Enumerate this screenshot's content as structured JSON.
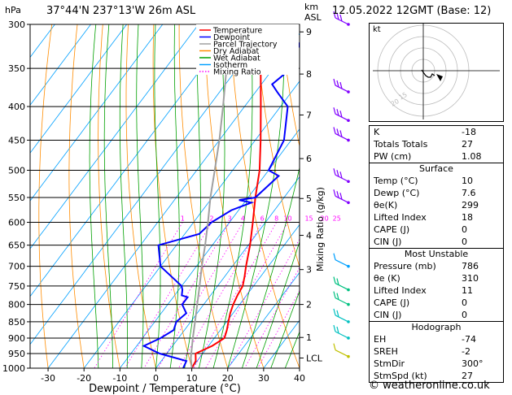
{
  "header": {
    "pressure_unit": "hPa",
    "location": "37°44'N  237°13'W  26m  ASL",
    "km_label": "km",
    "asl_label": "ASL",
    "datetime": "12.05.2022  12GMT  (Base: 12)"
  },
  "chart_data": {
    "type": "line",
    "title": "",
    "xlabel": "Dewpoint / Temperature (°C)",
    "ylabel": "Mixing Ratio (g/kg)",
    "xlim": [
      -35,
      40
    ],
    "ylim": [
      1000,
      300
    ],
    "x_ticks": [
      -30,
      -20,
      -10,
      0,
      10,
      20,
      30,
      40
    ],
    "pressure_levels": [
      300,
      350,
      400,
      450,
      500,
      550,
      600,
      650,
      700,
      750,
      800,
      850,
      900,
      950,
      1000
    ],
    "height_km": [
      {
        "label": "9",
        "p": 308
      },
      {
        "label": "8",
        "p": 357
      },
      {
        "label": "7",
        "p": 412
      },
      {
        "label": "6",
        "p": 480
      },
      {
        "label": "5",
        "p": 552
      },
      {
        "label": "4",
        "p": 628
      },
      {
        "label": "3",
        "p": 708
      },
      {
        "label": "2",
        "p": 800
      },
      {
        "label": "1",
        "p": 898
      },
      {
        "label": "LCL",
        "p": 965
      }
    ],
    "mixing_ratio_labels": [
      "1",
      "2",
      "3",
      "4",
      "6",
      "8",
      "10",
      "15",
      "20",
      "25"
    ],
    "mixing_ratio_values": [
      1,
      2,
      3,
      4,
      6,
      8,
      10,
      15,
      20,
      25
    ],
    "legend": [
      {
        "label": "Temperature",
        "color": "#ff0000"
      },
      {
        "label": "Dewpoint",
        "color": "#0000ff"
      },
      {
        "label": "Parcel Trajectory",
        "color": "#a0a0a0"
      },
      {
        "label": "Dry Adiabat",
        "color": "#ff8c00"
      },
      {
        "label": "Wet Adiabat",
        "color": "#00a000"
      },
      {
        "label": "Isotherm",
        "color": "#00a0ff"
      },
      {
        "label": "Mixing Ratio",
        "color": "#ff00ff"
      }
    ],
    "series": [
      {
        "name": "Temperature",
        "color": "#ff0000",
        "points": [
          [
            1000,
            10
          ],
          [
            975,
            9.6
          ],
          [
            950,
            8
          ],
          [
            925,
            11
          ],
          [
            900,
            12.8
          ],
          [
            875,
            11.8
          ],
          [
            850,
            10.5
          ],
          [
            825,
            9.2
          ],
          [
            800,
            8.2
          ],
          [
            775,
            7.5
          ],
          [
            750,
            7
          ],
          [
            725,
            5.5
          ],
          [
            700,
            3.8
          ],
          [
            650,
            0.5
          ],
          [
            600,
            -3.5
          ],
          [
            550,
            -8
          ],
          [
            500,
            -12.5
          ],
          [
            450,
            -18.5
          ],
          [
            400,
            -25.5
          ],
          [
            350,
            -33.5
          ],
          [
            325,
            -38
          ],
          [
            300,
            -42.5
          ]
        ]
      },
      {
        "name": "Dewpoint",
        "color": "#0000ff",
        "points": [
          [
            1000,
            7.6
          ],
          [
            975,
            7
          ],
          [
            950,
            -2
          ],
          [
            925,
            -8
          ],
          [
            900,
            -5
          ],
          [
            875,
            -3
          ],
          [
            850,
            -4
          ],
          [
            825,
            -3
          ],
          [
            800,
            -6
          ],
          [
            780,
            -6
          ],
          [
            775,
            -8
          ],
          [
            760,
            -9
          ],
          [
            750,
            -10
          ],
          [
            700,
            -20
          ],
          [
            650,
            -25
          ],
          [
            625,
            -16
          ],
          [
            600,
            -15
          ],
          [
            575,
            -12
          ],
          [
            560,
            -8
          ],
          [
            555,
            -12
          ],
          [
            550,
            -8
          ],
          [
            530,
            -7
          ],
          [
            510,
            -6
          ],
          [
            500,
            -10
          ],
          [
            450,
            -12
          ],
          [
            400,
            -18
          ],
          [
            380,
            -24
          ],
          [
            370,
            -27
          ],
          [
            350,
            -25
          ],
          [
            320,
            -28
          ],
          [
            310,
            -26
          ],
          [
            300,
            -27
          ]
        ]
      },
      {
        "name": "Parcel Trajectory",
        "color": "#a0a0a0",
        "points": [
          [
            1000,
            10
          ],
          [
            965,
            7.6
          ],
          [
            900,
            4
          ],
          [
            850,
            1.2
          ],
          [
            800,
            -1.8
          ],
          [
            750,
            -5
          ],
          [
            700,
            -8.5
          ],
          [
            650,
            -12
          ],
          [
            600,
            -16
          ],
          [
            550,
            -20.5
          ],
          [
            500,
            -25
          ],
          [
            450,
            -30
          ],
          [
            400,
            -36
          ],
          [
            350,
            -43
          ],
          [
            300,
            -51
          ]
        ]
      }
    ]
  },
  "hodograph": {
    "label": "kt"
  },
  "indices": [
    {
      "key": "K",
      "value": "-18"
    },
    {
      "key": "Totals Totals",
      "value": "27"
    },
    {
      "key": "PW (cm)",
      "value": "1.08"
    }
  ],
  "surface": {
    "title": "Surface",
    "rows": [
      {
        "key": "Temp (°C)",
        "value": "10"
      },
      {
        "key": "Dewp (°C)",
        "value": "7.6"
      },
      {
        "key": "θe(K)",
        "value": "299"
      },
      {
        "key": "Lifted Index",
        "value": "18"
      },
      {
        "key": "CAPE (J)",
        "value": "0"
      },
      {
        "key": "CIN (J)",
        "value": "0"
      }
    ]
  },
  "most_unstable": {
    "title": "Most Unstable",
    "rows": [
      {
        "key": "Pressure (mb)",
        "value": "786"
      },
      {
        "key": "θe (K)",
        "value": "310"
      },
      {
        "key": "Lifted Index",
        "value": "11"
      },
      {
        "key": "CAPE (J)",
        "value": "0"
      },
      {
        "key": "CIN (J)",
        "value": "0"
      }
    ]
  },
  "hodograph_table": {
    "title": "Hodograph",
    "rows": [
      {
        "key": "EH",
        "value": "-74"
      },
      {
        "key": "SREH",
        "value": "-2"
      },
      {
        "key": "StmDir",
        "value": "300°"
      },
      {
        "key": "StmSpd (kt)",
        "value": "27"
      }
    ]
  },
  "copyright": "© weatheronline.co.uk"
}
